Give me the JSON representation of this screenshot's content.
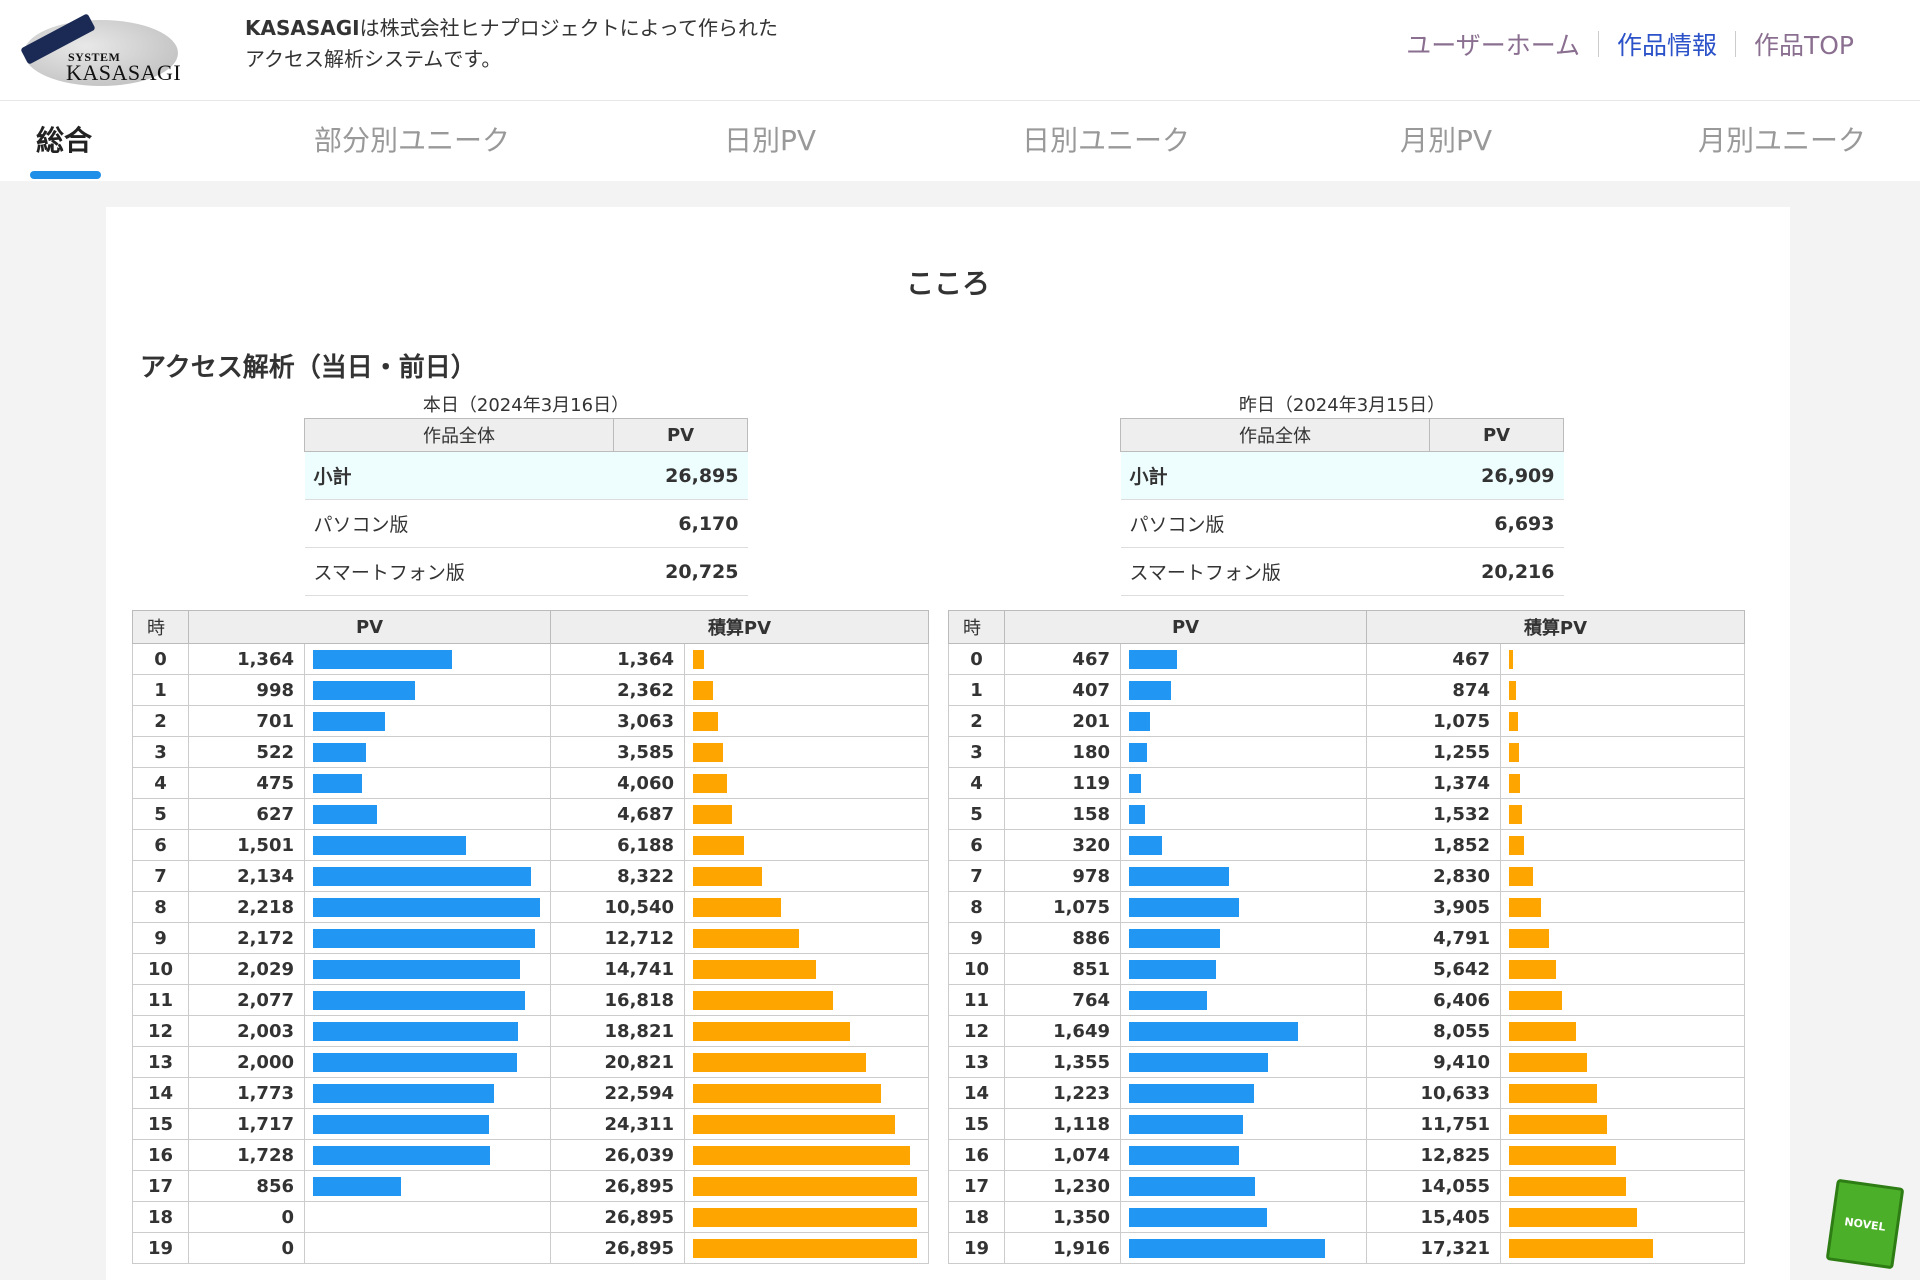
{
  "header": {
    "logo_small": "SYSTEM",
    "logo_name": "KASASAGI",
    "desc_brand": "KASASAGI",
    "desc_line1": "は株式会社ヒナプロジェクトによって作られた",
    "desc_line2": "アクセス解析システムです。",
    "links": [
      {
        "label": "ユーザーホーム"
      },
      {
        "label": "作品情報"
      },
      {
        "label": "作品TOP"
      }
    ]
  },
  "tabs": [
    {
      "label": "総合"
    },
    {
      "label": "部分別ユニーク"
    },
    {
      "label": "日別PV"
    },
    {
      "label": "日別ユニーク"
    },
    {
      "label": "月別PV"
    },
    {
      "label": "月別ユニーク"
    }
  ],
  "work_title": "こころ",
  "section_title": "アクセス解析（当日・前日）",
  "days": [
    {
      "label": "本日（2024年3月16日）",
      "summary_headers": [
        "作品全体",
        "PV"
      ],
      "summary": [
        {
          "label": "小計",
          "value": "26,895"
        },
        {
          "label": "パソコン版",
          "value": "6,170"
        },
        {
          "label": "スマートフォン版",
          "value": "20,725"
        }
      ],
      "hour_headers": [
        "時",
        "PV",
        "積算PV"
      ],
      "hours": [
        {
          "h": "0",
          "pv": "1,364",
          "cum": "1,364"
        },
        {
          "h": "1",
          "pv": "998",
          "cum": "2,362"
        },
        {
          "h": "2",
          "pv": "701",
          "cum": "3,063"
        },
        {
          "h": "3",
          "pv": "522",
          "cum": "3,585"
        },
        {
          "h": "4",
          "pv": "475",
          "cum": "4,060"
        },
        {
          "h": "5",
          "pv": "627",
          "cum": "4,687"
        },
        {
          "h": "6",
          "pv": "1,501",
          "cum": "6,188"
        },
        {
          "h": "7",
          "pv": "2,134",
          "cum": "8,322"
        },
        {
          "h": "8",
          "pv": "2,218",
          "cum": "10,540"
        },
        {
          "h": "9",
          "pv": "2,172",
          "cum": "12,712"
        },
        {
          "h": "10",
          "pv": "2,029",
          "cum": "14,741"
        },
        {
          "h": "11",
          "pv": "2,077",
          "cum": "16,818"
        },
        {
          "h": "12",
          "pv": "2,003",
          "cum": "18,821"
        },
        {
          "h": "13",
          "pv": "2,000",
          "cum": "20,821"
        },
        {
          "h": "14",
          "pv": "1,773",
          "cum": "22,594"
        },
        {
          "h": "15",
          "pv": "1,717",
          "cum": "24,311"
        },
        {
          "h": "16",
          "pv": "1,728",
          "cum": "26,039"
        },
        {
          "h": "17",
          "pv": "856",
          "cum": "26,895"
        },
        {
          "h": "18",
          "pv": "0",
          "cum": "26,895"
        },
        {
          "h": "19",
          "pv": "0",
          "cum": "26,895"
        }
      ]
    },
    {
      "label": "昨日（2024年3月15日）",
      "summary_headers": [
        "作品全体",
        "PV"
      ],
      "summary": [
        {
          "label": "小計",
          "value": "26,909"
        },
        {
          "label": "パソコン版",
          "value": "6,693"
        },
        {
          "label": "スマートフォン版",
          "value": "20,216"
        }
      ],
      "hour_headers": [
        "時",
        "PV",
        "積算PV"
      ],
      "hours": [
        {
          "h": "0",
          "pv": "467",
          "cum": "467"
        },
        {
          "h": "1",
          "pv": "407",
          "cum": "874"
        },
        {
          "h": "2",
          "pv": "201",
          "cum": "1,075"
        },
        {
          "h": "3",
          "pv": "180",
          "cum": "1,255"
        },
        {
          "h": "4",
          "pv": "119",
          "cum": "1,374"
        },
        {
          "h": "5",
          "pv": "158",
          "cum": "1,532"
        },
        {
          "h": "6",
          "pv": "320",
          "cum": "1,852"
        },
        {
          "h": "7",
          "pv": "978",
          "cum": "2,830"
        },
        {
          "h": "8",
          "pv": "1,075",
          "cum": "3,905"
        },
        {
          "h": "9",
          "pv": "886",
          "cum": "4,791"
        },
        {
          "h": "10",
          "pv": "851",
          "cum": "5,642"
        },
        {
          "h": "11",
          "pv": "764",
          "cum": "6,406"
        },
        {
          "h": "12",
          "pv": "1,649",
          "cum": "8,055"
        },
        {
          "h": "13",
          "pv": "1,355",
          "cum": "9,410"
        },
        {
          "h": "14",
          "pv": "1,223",
          "cum": "10,633"
        },
        {
          "h": "15",
          "pv": "1,118",
          "cum": "11,751"
        },
        {
          "h": "16",
          "pv": "1,074",
          "cum": "12,825"
        },
        {
          "h": "17",
          "pv": "1,230",
          "cum": "14,055"
        },
        {
          "h": "18",
          "pv": "1,350",
          "cum": "15,405"
        },
        {
          "h": "19",
          "pv": "1,916",
          "cum": "17,321"
        }
      ]
    }
  ],
  "badge": "NOVEL",
  "colors": {
    "pv_bar": "#2196f3",
    "cum_bar": "#ffa500",
    "tab_indicator": "#1f8fe8"
  }
}
